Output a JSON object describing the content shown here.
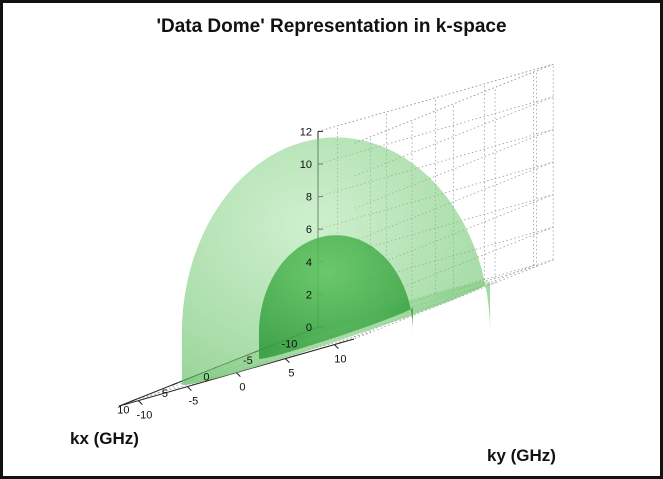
{
  "chart_data": {
    "type": "surface",
    "title": "'Data Dome' Representation in k-space",
    "xlabel": "kx (GHz)",
    "ylabel": "ky (GHz)",
    "zlabel": "",
    "xlim": [
      -12,
      12
    ],
    "ylim": [
      -12,
      12
    ],
    "zlim": [
      0,
      12
    ],
    "x_ticks": [
      -10,
      -5,
      0,
      5,
      10
    ],
    "y_ticks": [
      -10,
      -5,
      0,
      5,
      10
    ],
    "z_ticks": [
      0,
      2,
      4,
      6,
      8,
      10,
      12
    ],
    "grid": true,
    "series": [
      {
        "shape": "hemisphere",
        "center": [
          0,
          0,
          0
        ],
        "radius": 12,
        "color": "#7ccf7c"
      },
      {
        "shape": "hemisphere",
        "center": [
          0,
          0,
          0
        ],
        "radius": 6,
        "color": "#3fae4a"
      }
    ]
  },
  "colors": {
    "outer_dome": "#7ccf7c",
    "inner_dome": "#3fae4a",
    "grid": "#9a9a9a",
    "frame": "#111111"
  }
}
